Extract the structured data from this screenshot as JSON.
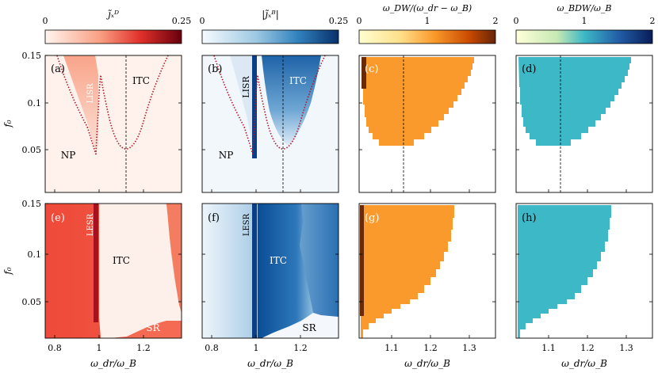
{
  "chart_data": [
    {
      "panel": "(a)",
      "type": "heatmap",
      "colorbar": {
        "label": "j̃ₓᴰ",
        "min": "0",
        "max": "0.25",
        "colormap": "white-red"
      },
      "xlim": [
        0.75,
        1.37
      ],
      "ylim": [
        0.01,
        0.15
      ],
      "x_ticks": [
        0.8,
        1,
        1.2
      ],
      "y_ticks": [
        0.05,
        0.1,
        0.15
      ],
      "y_tick_labels": [
        "0.05",
        "0.1",
        "0.15"
      ],
      "ylabel": "f₀",
      "region_labels": [
        "LISR",
        "ITC",
        "NP"
      ],
      "dashed_line_x": 1.12,
      "boundary_left": {
        "x": [
          0.76,
          0.8,
          0.85,
          0.9,
          0.94,
          0.97,
          0.985
        ],
        "y": [
          0.15,
          0.128,
          0.105,
          0.082,
          0.063,
          0.05,
          0.047
        ]
      },
      "boundary_right": {
        "x": [
          0.99,
          1.0,
          1.03,
          1.07,
          1.12,
          1.17,
          1.22,
          1.26,
          1.3
        ],
        "y": [
          0.047,
          0.07,
          0.1,
          0.06,
          0.051,
          0.06,
          0.09,
          0.125,
          0.15
        ]
      },
      "lisr_region": {
        "x": [
          0.82,
          0.95,
          0.99,
          0.99,
          0.97
        ],
        "y": [
          0.15,
          0.15,
          0.15,
          0.07,
          0.05
        ]
      }
    },
    {
      "panel": "(b)",
      "type": "heatmap",
      "colorbar": {
        "label": "|j̃ₓᴮ|",
        "min": "0",
        "max": "0.25",
        "colormap": "white-blue"
      },
      "xlim": [
        0.75,
        1.37
      ],
      "ylim": [
        0.01,
        0.15
      ],
      "x_ticks": [
        0.8,
        1,
        1.2
      ],
      "region_labels": [
        "LISR",
        "ITC",
        "NP"
      ],
      "dashed_line_x": 1.12
    },
    {
      "panel": "(c)",
      "type": "heatmap",
      "colorbar": {
        "label": "ω_DW/(ω_dr − ω_B)",
        "min": "0",
        "mid": "1",
        "max": "2",
        "colormap": "yellow-orange-brown"
      },
      "xlim": [
        1.0,
        1.37
      ],
      "ylim": [
        0.01,
        0.15
      ],
      "x_ticks": [
        1.1,
        1.2,
        1.3
      ],
      "dashed_line_x": 1.12,
      "region_color": "#FA9A2C",
      "region_top": {
        "x": [
          1.005,
          1.3
        ],
        "y": [
          0.148,
          0.148
        ]
      },
      "region_edge": {
        "x": [
          1.3,
          1.29,
          1.27,
          1.25,
          1.23,
          1.2,
          1.17,
          1.14,
          1.11,
          1.08,
          1.05,
          1.03,
          1.01
        ],
        "y": [
          0.148,
          0.135,
          0.122,
          0.11,
          0.098,
          0.088,
          0.077,
          0.068,
          0.06,
          0.056,
          0.056,
          0.07,
          0.1
        ]
      }
    },
    {
      "panel": "(d)",
      "type": "heatmap",
      "colorbar": {
        "label": "ω_BDW/ω_B",
        "min": "0",
        "mid": "1",
        "max": "2",
        "colormap": "yellow-teal-navy"
      },
      "xlim": [
        1.0,
        1.37
      ],
      "ylim": [
        0.01,
        0.15
      ],
      "x_ticks": [
        1.1,
        1.2,
        1.3
      ],
      "dashed_line_x": 1.12,
      "region_color": "#3DB8C6"
    },
    {
      "panel": "(e)",
      "type": "heatmap",
      "xlim": [
        0.75,
        1.37
      ],
      "ylim": [
        0.01,
        0.15
      ],
      "x_ticks": [
        0.8,
        1,
        1.2
      ],
      "x_tick_labels": [
        "0.8",
        "1",
        "1.2"
      ],
      "xlabel": "ω_dr/ω_B",
      "ylabel": "f₀",
      "region_labels": [
        "LESR",
        "ITC",
        "SR"
      ]
    },
    {
      "panel": "(f)",
      "type": "heatmap",
      "xlim": [
        0.75,
        1.37
      ],
      "ylim": [
        0.01,
        0.15
      ],
      "x_ticks": [
        0.8,
        1,
        1.2
      ],
      "xlabel": "ω_dr/ω_B",
      "region_labels": [
        "LESR",
        "ITC",
        "SR"
      ]
    },
    {
      "panel": "(g)",
      "type": "heatmap",
      "xlim": [
        1.0,
        1.37
      ],
      "ylim": [
        0.01,
        0.15
      ],
      "x_ticks": [
        1.1,
        1.2,
        1.3
      ],
      "x_tick_labels": [
        "1.1",
        "1.2",
        "1.3"
      ],
      "xlabel": "ω_dr/ω_B",
      "region_color": "#FA9A2C",
      "region_edge": {
        "x": [
          1.26,
          1.25,
          1.23,
          1.21,
          1.19,
          1.16,
          1.13,
          1.09,
          1.05,
          1.02,
          1.005
        ],
        "y": [
          0.15,
          0.13,
          0.11,
          0.095,
          0.08,
          0.065,
          0.05,
          0.04,
          0.03,
          0.02,
          0.01
        ]
      }
    },
    {
      "panel": "(h)",
      "type": "heatmap",
      "xlim": [
        1.0,
        1.37
      ],
      "ylim": [
        0.01,
        0.15
      ],
      "x_ticks": [
        1.1,
        1.2,
        1.3
      ],
      "xlabel": "ω_dr/ω_B",
      "region_color": "#3DB8C6"
    }
  ]
}
